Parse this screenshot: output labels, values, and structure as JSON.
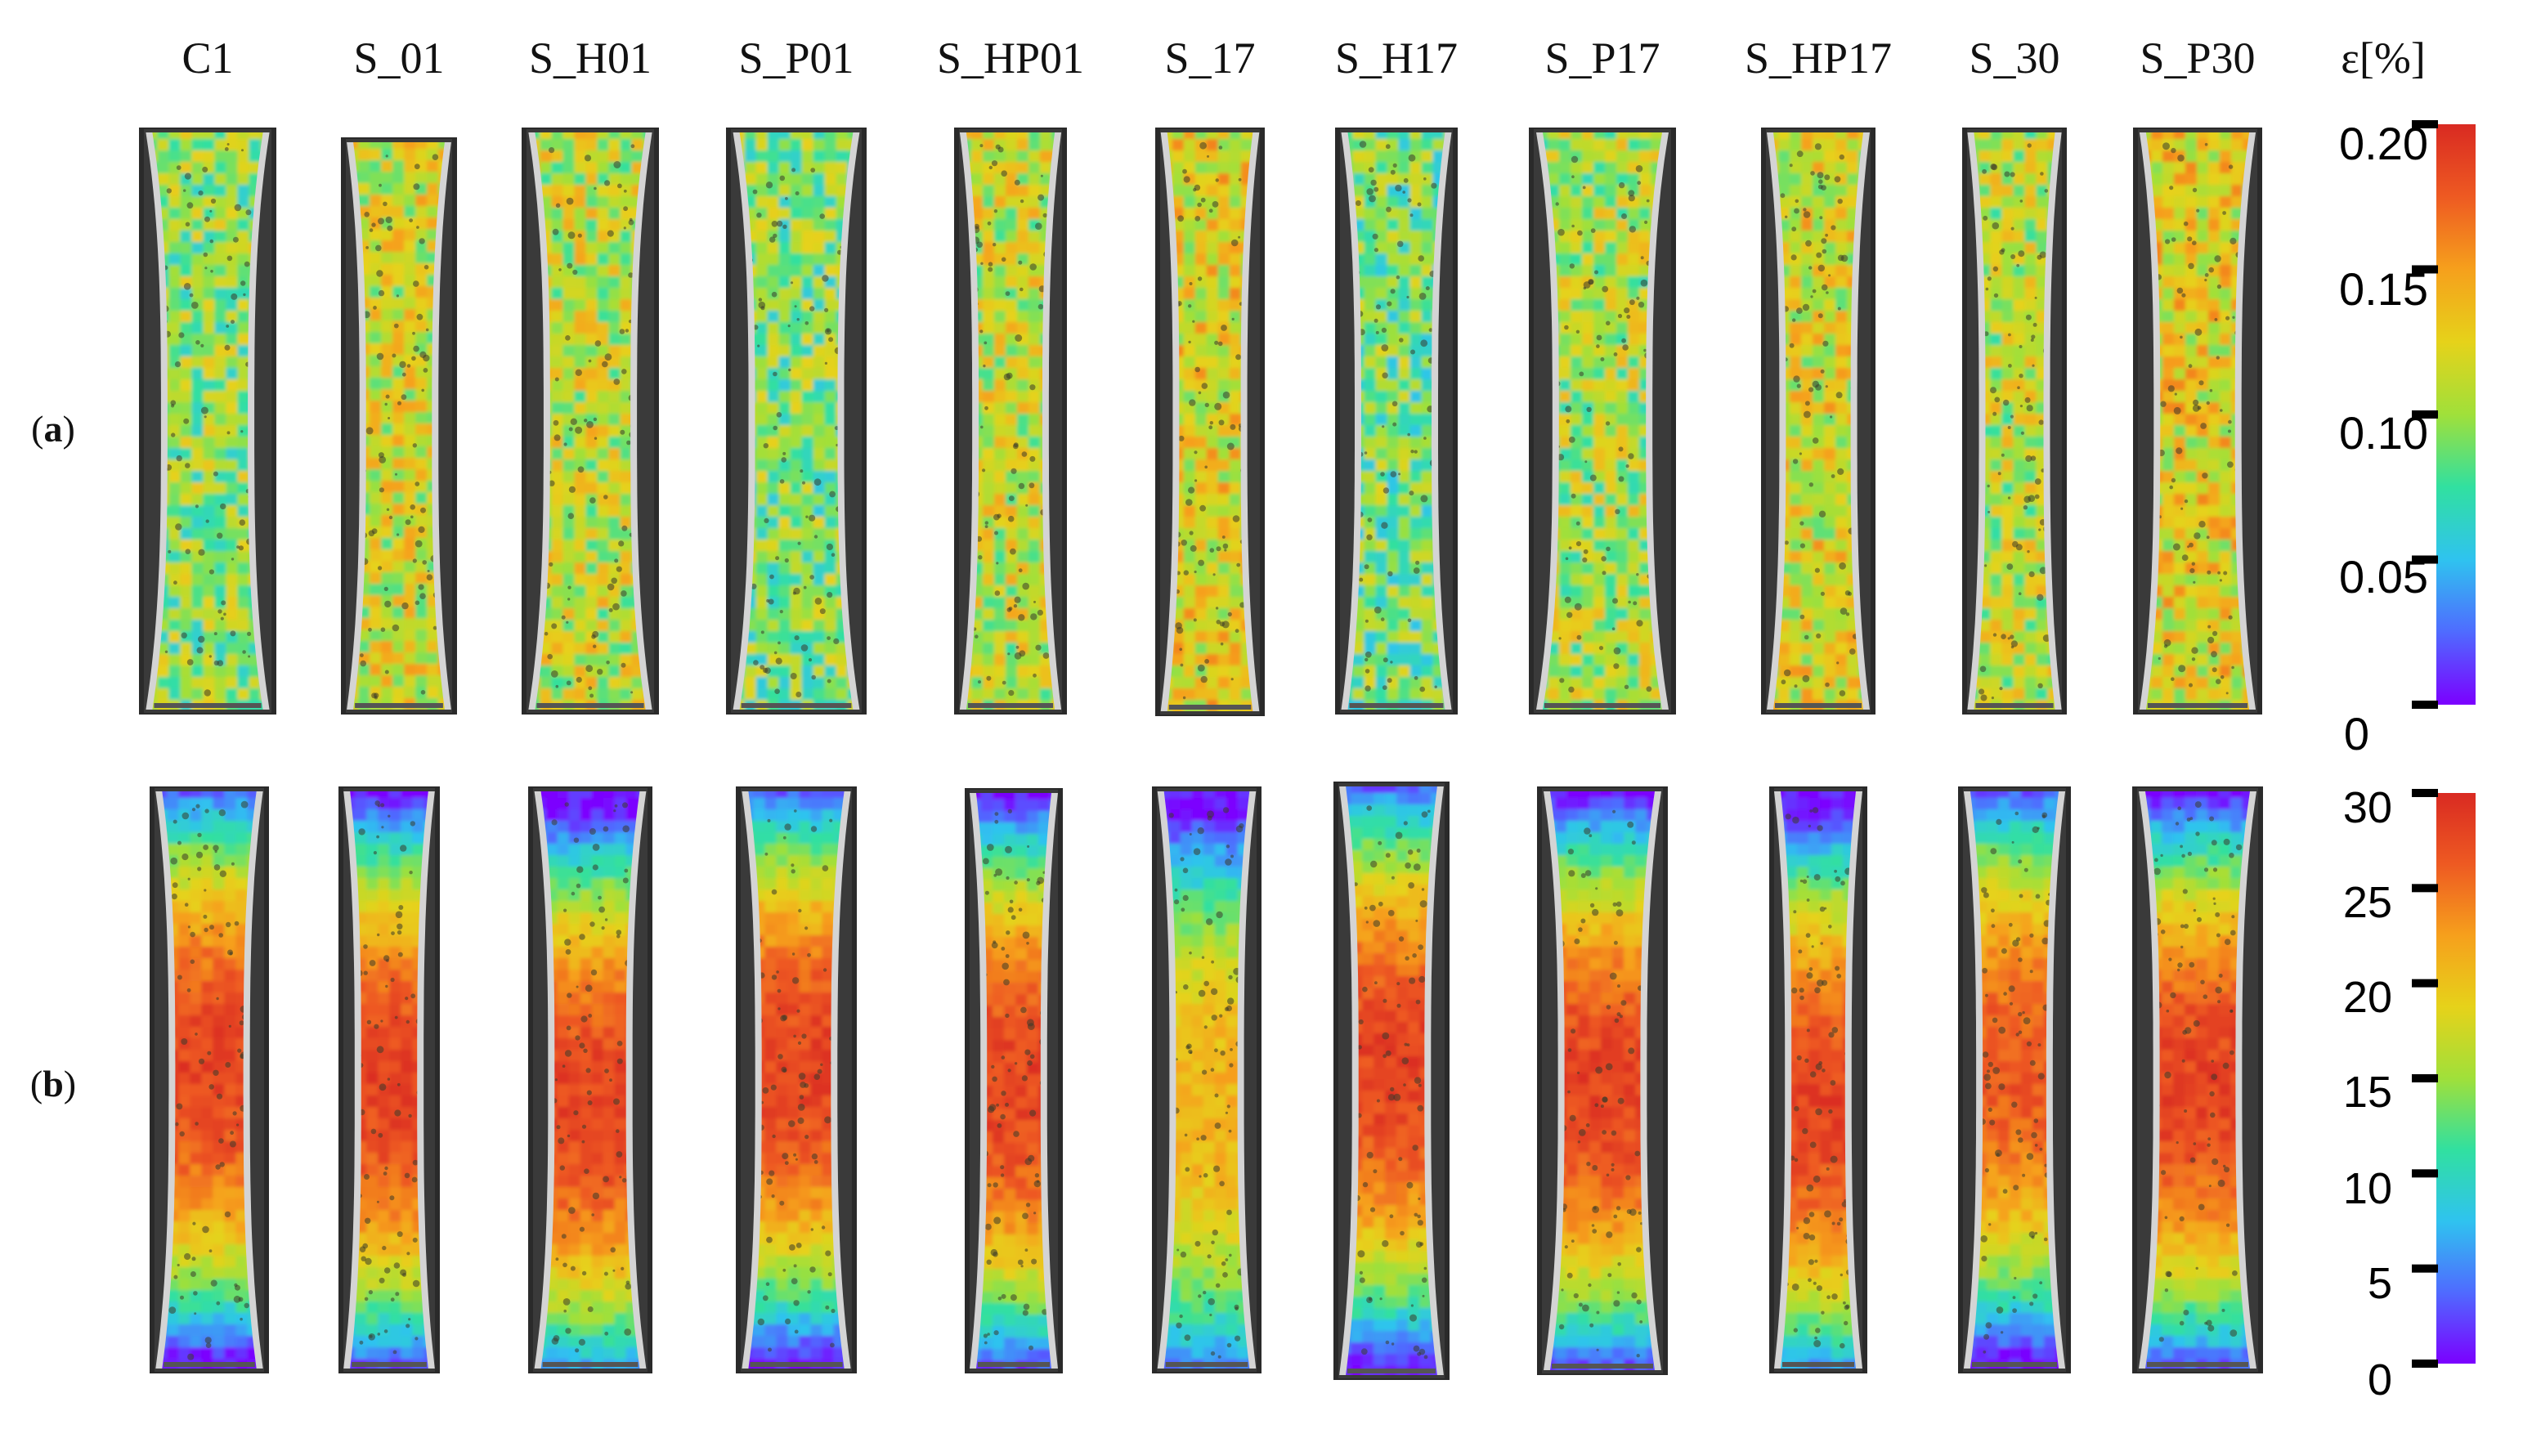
{
  "figure": {
    "column_labels": [
      "C1",
      "S_01",
      "S_H01",
      "S_P01",
      "S_HP01",
      "S_17",
      "S_H17",
      "S_P17",
      "S_HP17",
      "S_30",
      "S_P30"
    ],
    "row_labels": [
      {
        "open": "(",
        "letter": "a",
        "close": ")"
      },
      {
        "open": "(",
        "letter": "b",
        "close": ")"
      }
    ],
    "colorbar_title": "ε[%]",
    "colorbar_a_ticks": [
      "0.20",
      "0.15",
      "0.10",
      "0.05",
      "0"
    ],
    "colorbar_b_ticks": [
      "30",
      "25",
      "20",
      "15",
      "10",
      "5",
      "0"
    ],
    "colormap": [
      "#7b00ff",
      "#4f6bff",
      "#2fc3ef",
      "#31e0a0",
      "#a0e03a",
      "#e6d21a",
      "#f6a01c",
      "#ee5a22",
      "#d92a22"
    ]
  }
}
